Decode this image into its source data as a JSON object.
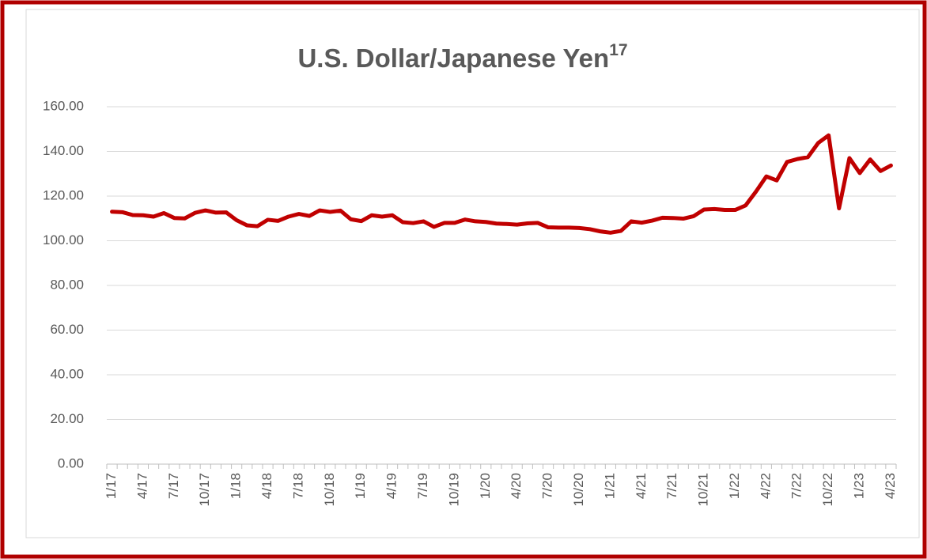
{
  "chart_data": {
    "type": "line",
    "title": "U.S. Dollar/Japanese Yen",
    "title_superscript": "17",
    "categories": [
      "1/17",
      null,
      null,
      "4/17",
      null,
      null,
      "7/17",
      null,
      null,
      "10/17",
      null,
      null,
      "1/18",
      null,
      null,
      "4/18",
      null,
      null,
      "7/18",
      null,
      null,
      "10/18",
      null,
      null,
      "1/19",
      null,
      null,
      "4/19",
      null,
      null,
      "7/19",
      null,
      null,
      "10/19",
      null,
      null,
      "1/20",
      null,
      null,
      "4/20",
      null,
      null,
      "7/20",
      null,
      null,
      "10/20",
      null,
      null,
      "1/21",
      null,
      null,
      "4/21",
      null,
      null,
      "7/21",
      null,
      null,
      "10/21",
      null,
      null,
      "1/22",
      null,
      null,
      "4/22",
      null,
      null,
      "7/22",
      null,
      null,
      "10/22",
      null,
      null,
      "1/23",
      null,
      null,
      "4/23"
    ],
    "series": [
      {
        "name": "USD/JPY",
        "color": "#c00000",
        "values": [
          113.0,
          112.8,
          111.5,
          111.4,
          110.8,
          112.4,
          110.2,
          110.0,
          112.5,
          113.6,
          112.6,
          112.7,
          109.2,
          106.9,
          106.5,
          109.4,
          108.9,
          110.8,
          112.0,
          111.1,
          113.6,
          112.9,
          113.5,
          109.6,
          108.8,
          111.4,
          110.8,
          111.4,
          108.3,
          107.9,
          108.7,
          106.2,
          108.0,
          108.0,
          109.5,
          108.7,
          108.4,
          107.7,
          107.5,
          107.2,
          107.8,
          108.0,
          106.0,
          105.9,
          105.9,
          105.7,
          105.2,
          104.2,
          103.6,
          104.4,
          108.7,
          108.1,
          109.0,
          110.3,
          110.2,
          109.9,
          111.0,
          114.0,
          114.2,
          113.8,
          113.8,
          115.8,
          122.0,
          128.8,
          127.0,
          135.3,
          136.6,
          137.4,
          143.8,
          147.2,
          114.5,
          137.0,
          130.3,
          136.4,
          131.2,
          133.7
        ]
      }
    ],
    "ylim": [
      0,
      160
    ],
    "yticks": [
      {
        "value": 0,
        "label": "0.00"
      },
      {
        "value": 20,
        "label": "20.00"
      },
      {
        "value": 40,
        "label": "40.00"
      },
      {
        "value": 60,
        "label": "60.00"
      },
      {
        "value": 80,
        "label": "80.00"
      },
      {
        "value": 100,
        "label": "100.00"
      },
      {
        "value": 120,
        "label": "120.00"
      },
      {
        "value": 140,
        "label": "140.00"
      },
      {
        "value": 160,
        "label": "160.00"
      }
    ],
    "grid": true
  }
}
